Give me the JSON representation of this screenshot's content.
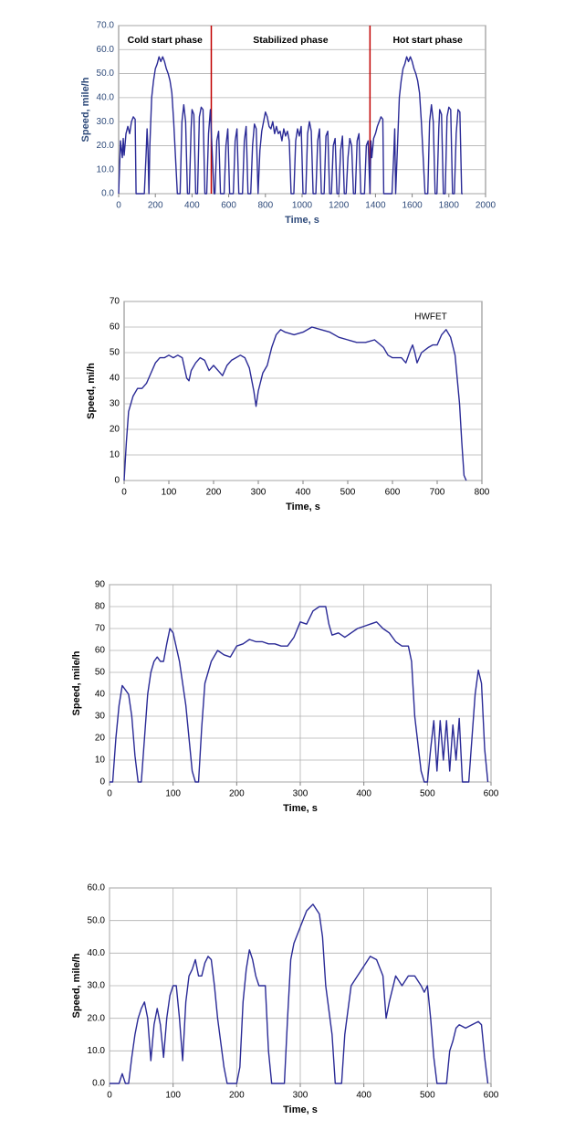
{
  "chart_data": [
    {
      "type": "line",
      "x_label": "Time, s",
      "y_label": "Speed, mile/h",
      "color": "#2a2a96",
      "text_color": "#2e4a7a",
      "grid": "y",
      "phases": [
        "Cold start phase",
        "Stabilized phase",
        "Hot start phase"
      ],
      "vlines": [
        505,
        1370
      ],
      "vline_color": "#c00000",
      "xlim": [
        0,
        2000
      ],
      "xticks": [
        0,
        200,
        400,
        600,
        800,
        1000,
        1200,
        1400,
        1600,
        1800,
        2000
      ],
      "ylim": [
        0,
        70
      ],
      "yticks": [
        {
          "value": 0,
          "label": "0.0"
        },
        {
          "value": 10,
          "label": "10.0"
        },
        {
          "value": 20,
          "label": "20.0"
        },
        {
          "value": 30,
          "label": "30.0"
        },
        {
          "value": 40,
          "label": "40.0"
        },
        {
          "value": 50,
          "label": "50.0"
        },
        {
          "value": 60,
          "label": "60.0"
        },
        {
          "value": 70,
          "label": "70.0"
        }
      ],
      "x": [
        0,
        10,
        20,
        25,
        30,
        40,
        50,
        60,
        70,
        80,
        90,
        95,
        140,
        150,
        155,
        160,
        165,
        170,
        180,
        190,
        200,
        210,
        220,
        230,
        240,
        250,
        260,
        270,
        280,
        290,
        300,
        310,
        320,
        335,
        345,
        355,
        365,
        375,
        385,
        395,
        400,
        410,
        420,
        430,
        440,
        450,
        460,
        470,
        480,
        490,
        500,
        510,
        520,
        525,
        535,
        545,
        555,
        575,
        585,
        595,
        605,
        625,
        635,
        645,
        655,
        675,
        685,
        695,
        705,
        720,
        730,
        740,
        750,
        760,
        770,
        780,
        790,
        800,
        810,
        820,
        830,
        840,
        850,
        860,
        870,
        880,
        890,
        900,
        910,
        920,
        930,
        940,
        955,
        965,
        975,
        985,
        995,
        1005,
        1020,
        1030,
        1040,
        1050,
        1060,
        1075,
        1085,
        1095,
        1105,
        1120,
        1130,
        1140,
        1150,
        1160,
        1170,
        1180,
        1190,
        1200,
        1210,
        1220,
        1230,
        1240,
        1250,
        1260,
        1270,
        1280,
        1290,
        1300,
        1310,
        1320,
        1340,
        1350,
        1360,
        1370,
        1375,
        1380,
        1390,
        1400,
        1410,
        1420,
        1430,
        1440,
        1445,
        1490,
        1500,
        1505,
        1510,
        1520,
        1530,
        1540,
        1550,
        1560,
        1570,
        1580,
        1590,
        1600,
        1610,
        1620,
        1630,
        1640,
        1650,
        1660,
        1670,
        1685,
        1695,
        1705,
        1715,
        1725,
        1735,
        1745,
        1750,
        1760,
        1770,
        1780,
        1790,
        1800,
        1810,
        1820,
        1830,
        1840,
        1850,
        1860,
        1870,
        1875
      ],
      "values": [
        0,
        22,
        15,
        23,
        16,
        25,
        28,
        25,
        30,
        32,
        31,
        0,
        0,
        17,
        27,
        18,
        0,
        20,
        40,
        47,
        52,
        54,
        57,
        55,
        57,
        55,
        52,
        50,
        47,
        42,
        30,
        15,
        0,
        0,
        30,
        37,
        30,
        0,
        0,
        27,
        35,
        33,
        0,
        0,
        32,
        36,
        35,
        0,
        0,
        25,
        35,
        17,
        0,
        0,
        22,
        26,
        0,
        0,
        20,
        27,
        0,
        0,
        22,
        27,
        0,
        0,
        22,
        28,
        0,
        0,
        20,
        29,
        27,
        0,
        18,
        26,
        30,
        34,
        32,
        28,
        27,
        30,
        25,
        28,
        25,
        26,
        22,
        27,
        24,
        26,
        22,
        0,
        0,
        22,
        27,
        24,
        28,
        0,
        0,
        25,
        30,
        26,
        0,
        0,
        22,
        27,
        0,
        0,
        24,
        26,
        0,
        0,
        20,
        23,
        0,
        0,
        18,
        24,
        0,
        0,
        15,
        23,
        20,
        0,
        0,
        22,
        25,
        0,
        0,
        20,
        22,
        0,
        22,
        15,
        23,
        25,
        28,
        30,
        32,
        31,
        0,
        0,
        17,
        27,
        0,
        20,
        40,
        47,
        52,
        54,
        57,
        55,
        57,
        55,
        52,
        50,
        47,
        42,
        30,
        15,
        0,
        0,
        30,
        37,
        30,
        0,
        0,
        27,
        35,
        33,
        0,
        0,
        32,
        36,
        35,
        0,
        0,
        25,
        35,
        34,
        0,
        0
      ]
    },
    {
      "type": "line",
      "x_label": "Time, s",
      "y_label": "Speed, mi/h",
      "annotation": "HWFET",
      "color": "#2a2a96",
      "text_color": "#000000",
      "grid": "y",
      "xlim": [
        0,
        800
      ],
      "xticks": [
        0,
        100,
        200,
        300,
        400,
        500,
        600,
        700,
        800
      ],
      "ylim": [
        0,
        70
      ],
      "yticks": [
        0,
        10,
        20,
        30,
        40,
        50,
        60,
        70
      ],
      "x": [
        0,
        5,
        10,
        20,
        30,
        40,
        50,
        60,
        70,
        80,
        90,
        100,
        110,
        120,
        130,
        140,
        145,
        150,
        160,
        170,
        180,
        190,
        200,
        210,
        220,
        230,
        240,
        250,
        260,
        270,
        280,
        290,
        295,
        300,
        310,
        320,
        330,
        340,
        350,
        360,
        380,
        400,
        420,
        440,
        460,
        480,
        500,
        520,
        540,
        560,
        580,
        590,
        600,
        620,
        630,
        640,
        645,
        650,
        655,
        665,
        680,
        690,
        700,
        710,
        720,
        730,
        740,
        750,
        755,
        760,
        765
      ],
      "values": [
        0,
        15,
        27,
        33,
        36,
        36,
        38,
        42,
        46,
        48,
        48,
        49,
        48,
        49,
        48,
        40,
        39,
        43,
        46,
        48,
        47,
        43,
        45,
        43,
        41,
        45,
        47,
        48,
        49,
        48,
        44,
        35,
        29,
        35,
        42,
        45,
        52,
        57,
        59,
        58,
        57,
        58,
        60,
        59,
        58,
        56,
        55,
        54,
        54,
        55,
        52,
        49,
        48,
        48,
        46,
        51,
        53,
        50,
        46,
        50,
        52,
        53,
        53,
        57,
        59,
        56,
        49,
        30,
        15,
        2,
        0
      ]
    },
    {
      "type": "line",
      "x_label": "Time, s",
      "y_label": "Speed, mile/h",
      "color": "#2a2a96",
      "text_color": "#000000",
      "grid": "both",
      "xlim": [
        0,
        600
      ],
      "xticks": [
        0,
        100,
        200,
        300,
        400,
        500,
        600
      ],
      "ylim": [
        0,
        90
      ],
      "yticks": [
        0,
        10,
        20,
        30,
        40,
        50,
        60,
        70,
        80,
        90
      ],
      "x": [
        0,
        5,
        10,
        15,
        20,
        25,
        30,
        35,
        40,
        45,
        50,
        55,
        60,
        65,
        70,
        75,
        80,
        85,
        90,
        95,
        100,
        110,
        120,
        130,
        135,
        140,
        145,
        150,
        160,
        170,
        180,
        190,
        200,
        210,
        220,
        230,
        240,
        250,
        260,
        270,
        280,
        290,
        300,
        310,
        320,
        330,
        340,
        345,
        350,
        360,
        370,
        380,
        390,
        400,
        410,
        420,
        430,
        440,
        450,
        460,
        470,
        475,
        480,
        490,
        495,
        500,
        505,
        510,
        515,
        520,
        525,
        530,
        535,
        540,
        545,
        550,
        555,
        565,
        570,
        575,
        580,
        585,
        590,
        595
      ],
      "values": [
        0,
        0,
        20,
        35,
        44,
        42,
        40,
        30,
        12,
        0,
        0,
        20,
        40,
        50,
        55,
        57,
        55,
        55,
        63,
        70,
        68,
        55,
        35,
        5,
        0,
        0,
        25,
        45,
        55,
        60,
        58,
        57,
        62,
        63,
        65,
        64,
        64,
        63,
        63,
        62,
        62,
        66,
        73,
        72,
        78,
        80,
        80,
        72,
        67,
        68,
        66,
        68,
        70,
        71,
        72,
        73,
        70,
        68,
        64,
        62,
        62,
        55,
        30,
        5,
        0,
        0,
        15,
        28,
        5,
        28,
        10,
        28,
        5,
        26,
        10,
        29,
        0,
        0,
        20,
        40,
        51,
        45,
        15,
        0
      ]
    },
    {
      "type": "line",
      "x_label": "Time, s",
      "y_label": "Speed, mile/h",
      "color": "#2a2a96",
      "text_color": "#000000",
      "grid": "both",
      "xlim": [
        0,
        600
      ],
      "xticks": [
        0,
        100,
        200,
        300,
        400,
        500,
        600
      ],
      "ylim": [
        0,
        60
      ],
      "yticks": [
        {
          "value": 0,
          "label": "0.0"
        },
        {
          "value": 10,
          "label": "10.0"
        },
        {
          "value": 20,
          "label": "20.0"
        },
        {
          "value": 30,
          "label": "30.0"
        },
        {
          "value": 40,
          "label": "40.0"
        },
        {
          "value": 50,
          "label": "50.0"
        },
        {
          "value": 60,
          "label": "60.0"
        }
      ],
      "x": [
        0,
        15,
        20,
        25,
        30,
        35,
        40,
        45,
        50,
        55,
        60,
        65,
        70,
        75,
        80,
        85,
        90,
        95,
        100,
        105,
        110,
        115,
        120,
        125,
        130,
        135,
        140,
        145,
        150,
        155,
        160,
        165,
        170,
        180,
        185,
        200,
        205,
        210,
        215,
        220,
        225,
        230,
        235,
        245,
        250,
        255,
        275,
        280,
        285,
        290,
        300,
        310,
        320,
        330,
        335,
        340,
        350,
        355,
        365,
        370,
        380,
        390,
        400,
        410,
        420,
        430,
        435,
        440,
        450,
        460,
        470,
        480,
        490,
        495,
        500,
        505,
        510,
        515,
        530,
        535,
        540,
        545,
        550,
        560,
        570,
        580,
        585,
        590,
        595
      ],
      "values": [
        0,
        0,
        3,
        0,
        0,
        8,
        15,
        20,
        23,
        25,
        20,
        7,
        18,
        23,
        18,
        8,
        20,
        27,
        30,
        30,
        20,
        7,
        25,
        33,
        35,
        38,
        33,
        33,
        37,
        39,
        38,
        30,
        20,
        5,
        0,
        0,
        5,
        25,
        35,
        41,
        38,
        33,
        30,
        30,
        10,
        0,
        0,
        20,
        38,
        43,
        48,
        53,
        55,
        52,
        45,
        30,
        15,
        0,
        0,
        15,
        30,
        33,
        36,
        39,
        38,
        33,
        20,
        25,
        33,
        30,
        33,
        33,
        30,
        28,
        30,
        20,
        8,
        0,
        0,
        10,
        13,
        17,
        18,
        17,
        18,
        19,
        18,
        8,
        0
      ]
    }
  ]
}
